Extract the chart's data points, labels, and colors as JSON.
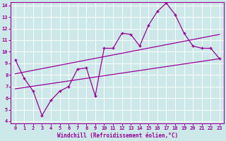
{
  "xlabel": "Windchill (Refroidissement éolien,°C)",
  "xlim": [
    -0.5,
    23.5
  ],
  "ylim": [
    3.8,
    14.3
  ],
  "xticks": [
    0,
    1,
    2,
    3,
    4,
    5,
    6,
    7,
    8,
    9,
    10,
    11,
    12,
    13,
    14,
    15,
    16,
    17,
    18,
    19,
    20,
    21,
    22,
    23
  ],
  "yticks": [
    4,
    5,
    6,
    7,
    8,
    9,
    10,
    11,
    12,
    13,
    14
  ],
  "bg_color": "#cce8e8",
  "line_color": "#990099",
  "grid_color": "#ffffff",
  "main_line_x": [
    0,
    1,
    2,
    3,
    4,
    5,
    6,
    7,
    8,
    9,
    10,
    11,
    12,
    13,
    14,
    15,
    16,
    17,
    18,
    19,
    20,
    21,
    22,
    23
  ],
  "main_line_y": [
    9.3,
    7.7,
    6.6,
    4.5,
    5.8,
    6.6,
    7.0,
    8.5,
    8.6,
    6.2,
    10.3,
    10.3,
    11.6,
    11.5,
    10.5,
    12.3,
    13.5,
    14.2,
    13.2,
    11.6,
    10.5,
    10.3,
    10.3,
    9.4
  ],
  "upper_line_x": [
    0,
    23
  ],
  "upper_line_y": [
    8.1,
    11.5
  ],
  "lower_line_x": [
    0,
    23
  ],
  "lower_line_y": [
    6.8,
    9.4
  ]
}
